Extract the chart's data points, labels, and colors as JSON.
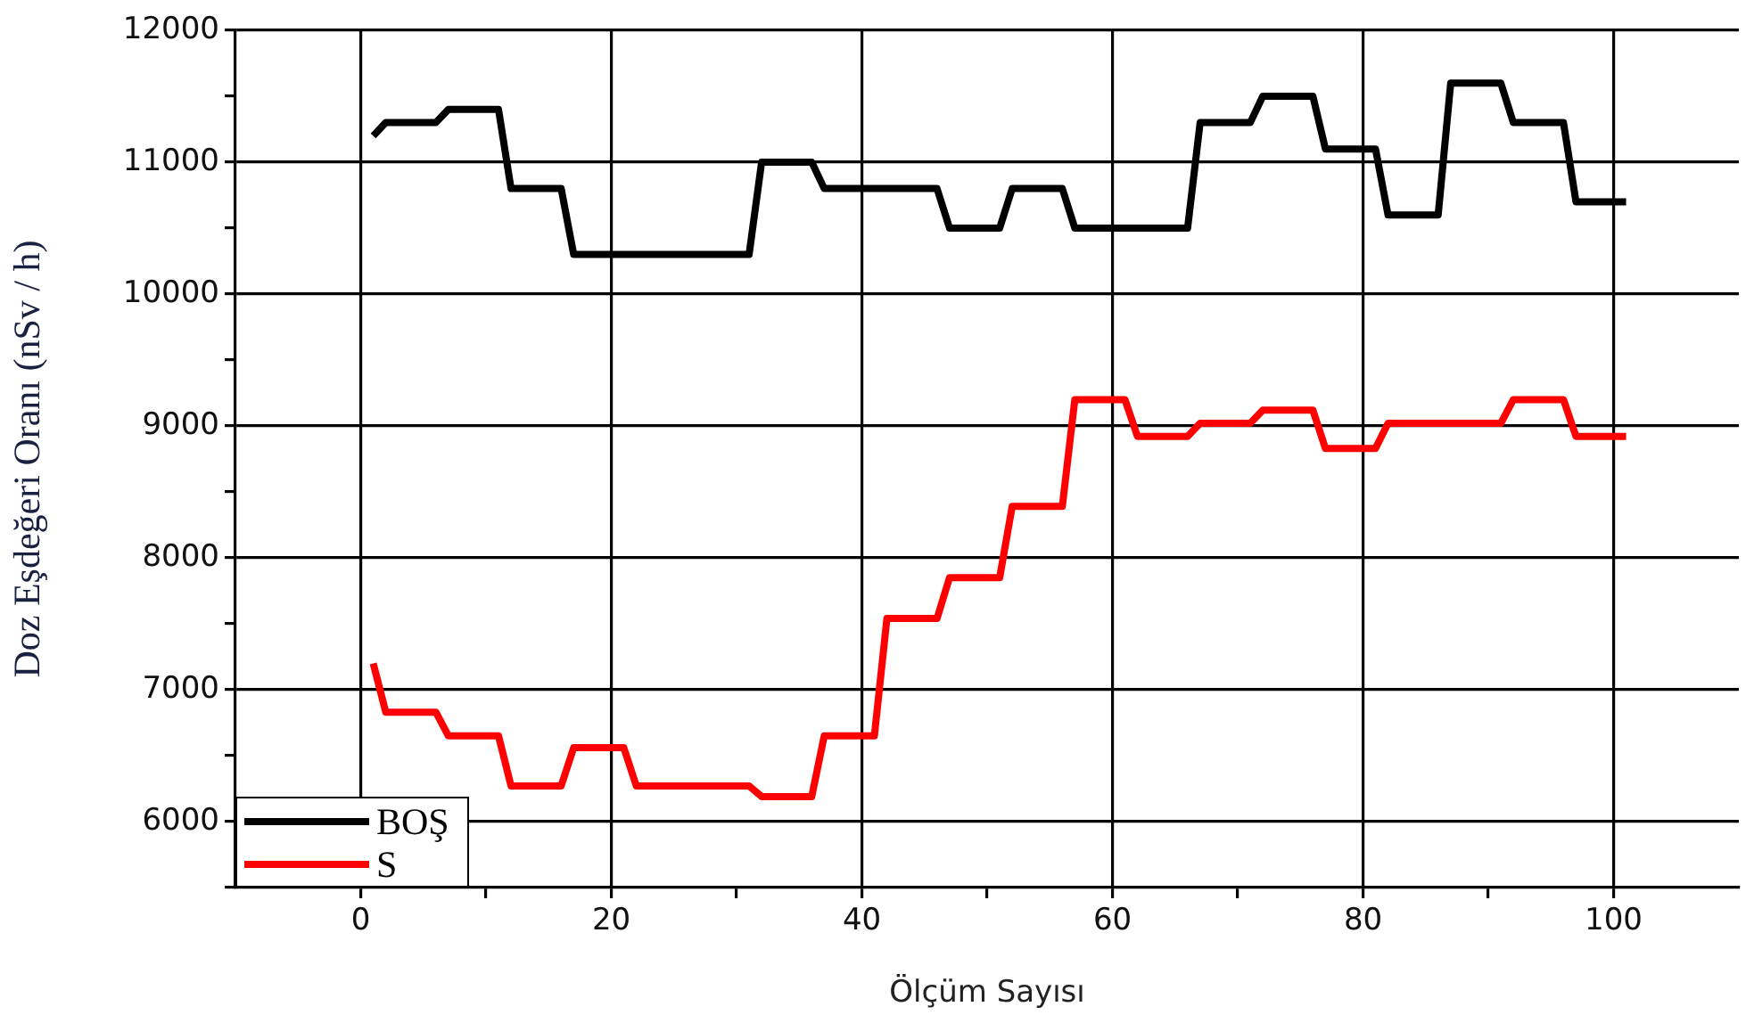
{
  "chart_data": {
    "type": "line",
    "xlabel": "Ölçüm Sayısı",
    "ylabel": "Doz Eşdeğeri Oranı (nSv / h)",
    "xlim": [
      -10,
      110
    ],
    "ylim": [
      5500,
      12000
    ],
    "xticks": [
      0,
      {
        "value": 10,
        "label": null
      },
      20,
      {
        "value": 30,
        "label": null
      },
      40,
      {
        "value": 50,
        "label": null
      },
      60,
      {
        "value": 70,
        "label": null
      },
      80,
      {
        "value": 90,
        "label": null
      },
      100
    ],
    "yticks": [
      {
        "value": 5500,
        "label": null
      },
      6000,
      {
        "value": 6500,
        "label": null
      },
      7000,
      {
        "value": 7500,
        "label": null
      },
      8000,
      {
        "value": 8500,
        "label": null
      },
      9000,
      {
        "value": 9500,
        "label": null
      },
      10000,
      {
        "value": 10500,
        "label": null
      },
      11000,
      {
        "value": 11500,
        "label": null
      },
      12000
    ],
    "grid": true,
    "legend": "bottom left",
    "marker": "none",
    "line_style": "solid",
    "series": [
      {
        "name": "BOŞ",
        "color": "#000000",
        "x": [
          1,
          2,
          6,
          7,
          11,
          12,
          16,
          17,
          31,
          32,
          36,
          37,
          46,
          47,
          51,
          52,
          56,
          57,
          66,
          67,
          71,
          72,
          76,
          77,
          81,
          82,
          86,
          87,
          91,
          92,
          96,
          97,
          101
        ],
        "values": [
          11200,
          11300,
          11300,
          11400,
          11400,
          10800,
          10800,
          10300,
          10300,
          11000,
          11000,
          10800,
          10800,
          10500,
          10500,
          10800,
          10800,
          10500,
          10500,
          11300,
          11300,
          11500,
          11500,
          11100,
          11100,
          10600,
          10600,
          11600,
          11600,
          11300,
          11300,
          10700,
          10700
        ]
      },
      {
        "name": "S",
        "color": "#ff0000",
        "x": [
          1,
          2,
          6,
          7,
          11,
          12,
          16,
          17,
          21,
          22,
          31,
          32,
          36,
          37,
          41,
          42,
          46,
          47,
          51,
          52,
          56,
          57,
          61,
          62,
          66,
          67,
          71,
          72,
          76,
          77,
          81,
          82,
          91,
          92,
          96,
          97,
          101
        ],
        "values": [
          7200,
          6830,
          6830,
          6650,
          6650,
          6270,
          6270,
          6560,
          6560,
          6270,
          6270,
          6190,
          6190,
          6650,
          6650,
          7540,
          7540,
          7850,
          7850,
          8390,
          8390,
          9200,
          9200,
          8920,
          8920,
          9020,
          9020,
          9120,
          9120,
          8830,
          8830,
          9020,
          9020,
          9200,
          9200,
          8920,
          8920
        ]
      }
    ]
  }
}
